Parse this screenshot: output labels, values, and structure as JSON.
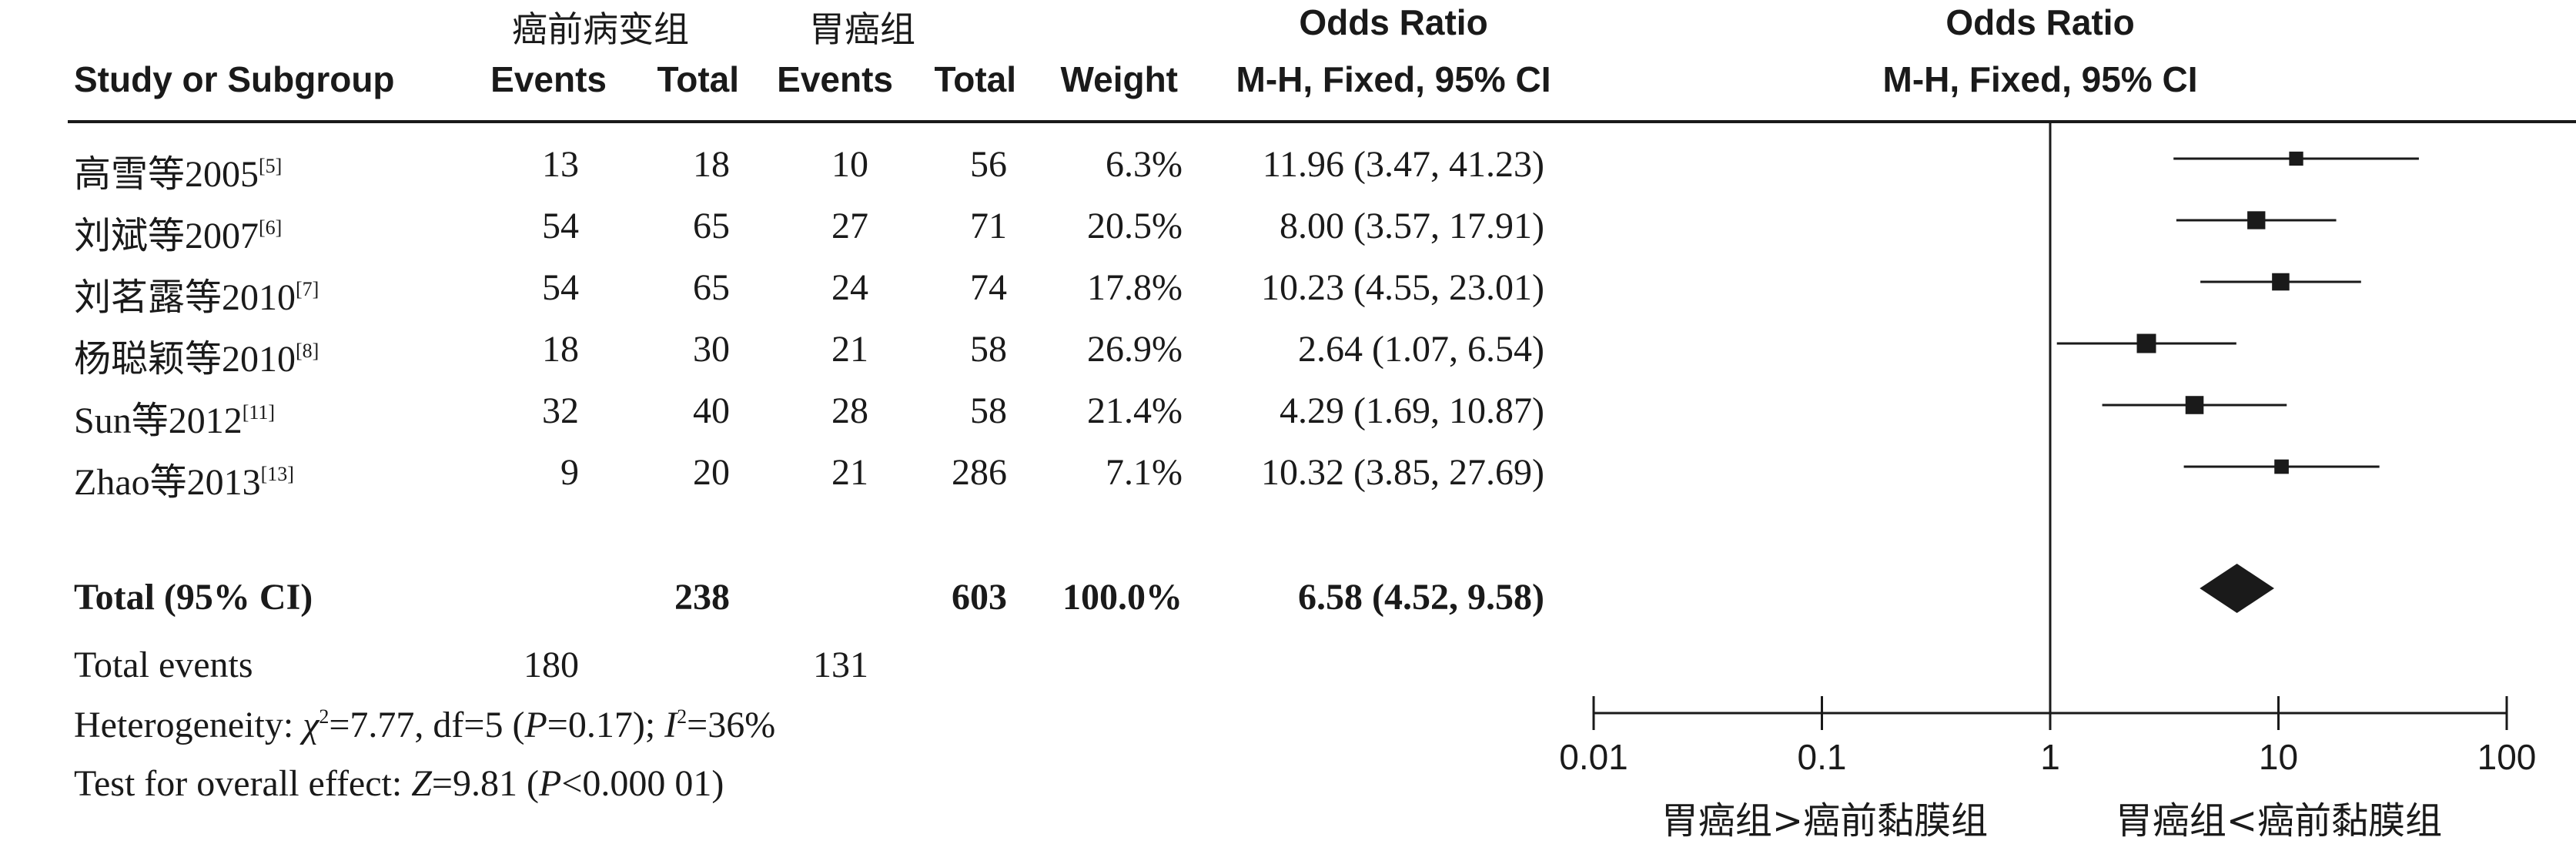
{
  "headers": {
    "study": "Study or Subgroup",
    "group1_name": "癌前病变组",
    "group2_name": "胃癌组",
    "events": "Events",
    "total": "Total",
    "weight": "Weight",
    "or_title": "Odds Ratio",
    "or_method": "M-H, Fixed, 95% CI",
    "plot_title": "Odds Ratio",
    "plot_method": "M-H, Fixed, 95% CI"
  },
  "studies": [
    {
      "name": "高雪等2005",
      "ref": "[5]",
      "e1": "13",
      "t1": "18",
      "e2": "10",
      "t2": "56",
      "weight": "6.3%",
      "ci_text": "11.96 (3.47, 41.23)"
    },
    {
      "name": "刘斌等2007",
      "ref": "[6]",
      "e1": "54",
      "t1": "65",
      "e2": "27",
      "t2": "71",
      "weight": "20.5%",
      "ci_text": "8.00 (3.57, 17.91)"
    },
    {
      "name": "刘茗露等2010",
      "ref": "[7]",
      "e1": "54",
      "t1": "65",
      "e2": "24",
      "t2": "74",
      "weight": "17.8%",
      "ci_text": "10.23 (4.55, 23.01)"
    },
    {
      "name": "杨聪颖等2010",
      "ref": "[8]",
      "e1": "18",
      "t1": "30",
      "e2": "21",
      "t2": "58",
      "weight": "26.9%",
      "ci_text": "2.64 (1.07, 6.54)"
    },
    {
      "name": "Sun等2012",
      "ref": "[11]",
      "e1": "32",
      "t1": "40",
      "e2": "28",
      "t2": "58",
      "weight": "21.4%",
      "ci_text": "4.29 (1.69, 10.87)"
    },
    {
      "name": "Zhao等2013",
      "ref": "[13]",
      "e1": "9",
      "t1": "20",
      "e2": "21",
      "t2": "286",
      "weight": "7.1%",
      "ci_text": "10.32 (3.85, 27.69)"
    }
  ],
  "total": {
    "label": "Total (95% CI)",
    "t1": "238",
    "t2": "603",
    "weight": "100.0%",
    "ci_text": "6.58 (4.52, 9.58)"
  },
  "total_events": {
    "label": "Total events",
    "e1": "180",
    "e2": "131"
  },
  "heterogeneity": {
    "prefix": "Heterogeneity: ",
    "chi": "χ",
    "chi_sup": "2",
    "mid": "=7.77, df=5 (",
    "p_sym": "P",
    "mid2": "=0.17); ",
    "i_sym": "I",
    "i_sup": "2",
    "suffix": "=36%"
  },
  "overall": {
    "prefix": "Test for overall effect: ",
    "z_sym": "Z",
    "mid": "=9.81 (",
    "p_sym": "P",
    "suffix": "<0.000 01)"
  },
  "axis": {
    "ticks": [
      "0.01",
      "0.1",
      "1",
      "10",
      "100"
    ],
    "left_label": "胃癌组>癌前黏膜组",
    "right_label": "胃癌组<癌前黏膜组"
  },
  "chart_data": {
    "type": "forest",
    "x_scale": "log",
    "xlim": [
      0.01,
      100
    ],
    "reference_line": 1,
    "studies": [
      {
        "name": "高雪等2005",
        "or": 11.96,
        "lower": 3.47,
        "upper": 41.23,
        "weight": 6.3
      },
      {
        "name": "刘斌等2007",
        "or": 8.0,
        "lower": 3.57,
        "upper": 17.91,
        "weight": 20.5
      },
      {
        "name": "刘茗露等2010",
        "or": 10.23,
        "lower": 4.55,
        "upper": 23.01,
        "weight": 17.8
      },
      {
        "name": "杨聪颖等2010",
        "or": 2.64,
        "lower": 1.07,
        "upper": 6.54,
        "weight": 26.9
      },
      {
        "name": "Sun等2012",
        "or": 4.29,
        "lower": 1.69,
        "upper": 10.87,
        "weight": 21.4
      },
      {
        "name": "Zhao等2013",
        "or": 10.32,
        "lower": 3.85,
        "upper": 27.69,
        "weight": 7.1
      }
    ],
    "pooled": {
      "or": 6.58,
      "lower": 4.52,
      "upper": 9.58
    }
  }
}
